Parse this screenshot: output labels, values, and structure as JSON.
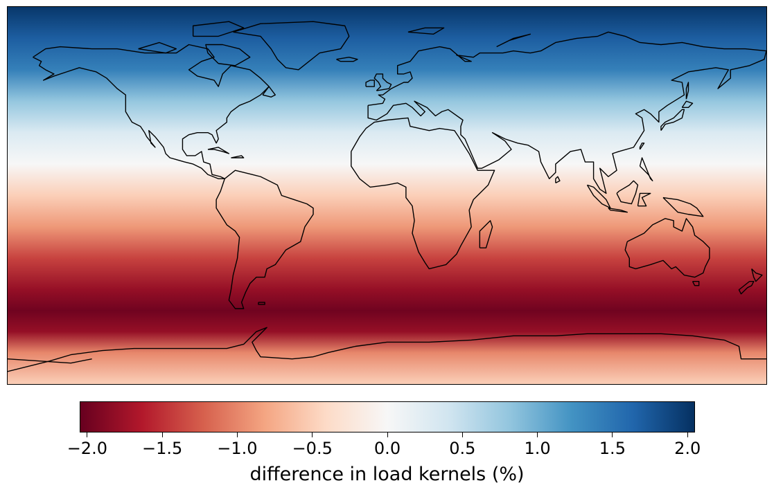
{
  "map": {
    "type": "heatmap",
    "projection": "plate-carree",
    "extent": {
      "lon": [
        -180,
        180
      ],
      "lat": [
        -90,
        90
      ]
    },
    "colormap": "RdBu",
    "colormap_stops": [
      "#67001f",
      "#b2182b",
      "#d6604d",
      "#f4a582",
      "#fddbc7",
      "#f7f7f7",
      "#d1e5f0",
      "#92c5de",
      "#4393c3",
      "#2166ac",
      "#053061"
    ],
    "coastline_color": "#000000",
    "field_by_latitude": [
      {
        "lat": 90,
        "value": 2.0
      },
      {
        "lat": 75,
        "value": 1.7
      },
      {
        "lat": 60,
        "value": 1.4
      },
      {
        "lat": 45,
        "value": 0.8
      },
      {
        "lat": 30,
        "value": 0.3
      },
      {
        "lat": 15,
        "value": 0.0
      },
      {
        "lat": 0,
        "value": -0.5
      },
      {
        "lat": -15,
        "value": -0.9
      },
      {
        "lat": -30,
        "value": -1.4
      },
      {
        "lat": -45,
        "value": -1.8
      },
      {
        "lat": -55,
        "value": -2.0
      },
      {
        "lat": -65,
        "value": -1.8
      },
      {
        "lat": -75,
        "value": -1.0
      },
      {
        "lat": -90,
        "value": -0.5
      }
    ]
  },
  "chart_data": {
    "type": "heatmap",
    "colorbar": {
      "label": "difference in load kernels (%)",
      "vmin": -2.05,
      "vmax": 2.05,
      "ticks": [
        -2.0,
        -1.5,
        -1.0,
        -0.5,
        0.0,
        0.5,
        1.0,
        1.5,
        2.0
      ],
      "tick_labels": [
        "−2.0",
        "−1.5",
        "−1.0",
        "−0.5",
        "0.0",
        "0.5",
        "1.0",
        "1.5",
        "2.0"
      ],
      "orientation": "horizontal",
      "placement": "bottom"
    }
  }
}
